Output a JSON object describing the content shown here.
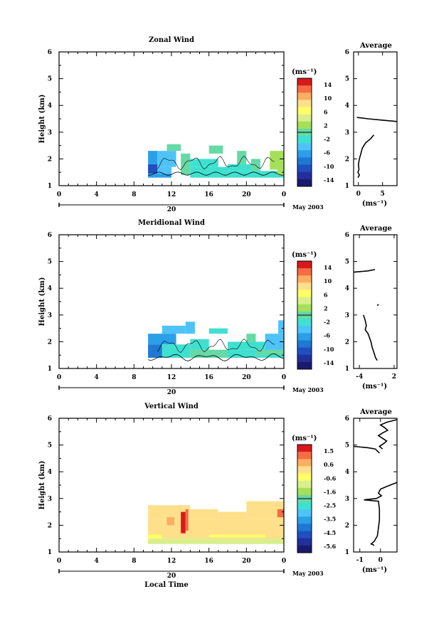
{
  "chart_data": [
    {
      "type": "heatmap",
      "title": "Zonal Wind",
      "ylabel": "Height (km)",
      "ylim": [
        1,
        6
      ],
      "y_ticks": [
        "1",
        "2",
        "3",
        "4",
        "5",
        "6"
      ],
      "xlim": [
        0,
        24
      ],
      "x_ticks": [
        "0",
        "4",
        "8",
        "12",
        "16",
        "20",
        "0"
      ],
      "date_bar": {
        "label": "20",
        "month_label": "May 2003"
      },
      "colorbar": {
        "unit_label": "(ms⁻¹)",
        "labels": [
          "14",
          "10",
          "6",
          "2",
          "-2",
          "-6",
          "-10",
          "-14"
        ],
        "range": [
          -16,
          16
        ]
      },
      "cells": [
        {
          "x": [
            9.5,
            10.5
          ],
          "y": [
            1.45,
            1.8
          ],
          "v": -10
        },
        {
          "x": [
            9.5,
            12
          ],
          "y": [
            1.3,
            1.45
          ],
          "v": -6
        },
        {
          "x": [
            10.5,
            12
          ],
          "y": [
            1.45,
            1.7
          ],
          "v": -4
        },
        {
          "x": [
            9.5,
            10.5
          ],
          "y": [
            1.8,
            2.3
          ],
          "v": -6
        },
        {
          "x": [
            10.5,
            12.5
          ],
          "y": [
            1.7,
            2.3
          ],
          "v": -4
        },
        {
          "x": [
            11.5,
            13
          ],
          "y": [
            2.3,
            2.55
          ],
          "v": 1
        },
        {
          "x": [
            13,
            14
          ],
          "y": [
            1.4,
            2.2
          ],
          "v": -1
        },
        {
          "x": [
            14,
            18
          ],
          "y": [
            1.3,
            1.7
          ],
          "v": -3
        },
        {
          "x": [
            14,
            17
          ],
          "y": [
            1.7,
            2.0
          ],
          "v": -2
        },
        {
          "x": [
            18,
            24
          ],
          "y": [
            1.3,
            1.55
          ],
          "v": -3
        },
        {
          "x": [
            18,
            20.5
          ],
          "y": [
            1.55,
            1.8
          ],
          "v": -2
        },
        {
          "x": [
            19,
            20
          ],
          "y": [
            1.8,
            2.3
          ],
          "v": 0
        },
        {
          "x": [
            16,
            17.5
          ],
          "y": [
            2.2,
            2.5
          ],
          "v": 0
        },
        {
          "x": [
            20.5,
            21.5
          ],
          "y": [
            1.55,
            2.0
          ],
          "v": -1
        },
        {
          "x": [
            22.5,
            24
          ],
          "y": [
            1.6,
            2.3
          ],
          "v": 2
        },
        {
          "x": [
            23.3,
            24
          ],
          "y": [
            1.4,
            1.7
          ],
          "v": 3
        }
      ],
      "profile": {
        "title": "Average",
        "xlabel": "(ms⁻¹)",
        "xlim": [
          -1,
          8
        ],
        "x_ticks": [
          "0",
          "5"
        ],
        "y_ticks": [
          "1",
          "2",
          "3",
          "4",
          "5",
          "6"
        ],
        "segments": [
          [
            [
              -0.3,
              3.55
            ],
            [
              2,
              3.5
            ],
            [
              5,
              3.45
            ],
            [
              8,
              3.4
            ]
          ],
          [
            [
              3.2,
              2.9
            ],
            [
              2.5,
              2.75
            ],
            [
              1.5,
              2.6
            ],
            [
              0.8,
              2.4
            ],
            [
              0.5,
              2.2
            ],
            [
              0.2,
              2.0
            ],
            [
              0.0,
              1.8
            ],
            [
              0.1,
              1.6
            ],
            [
              -0.1,
              1.5
            ],
            [
              0.2,
              1.4
            ],
            [
              -0.1,
              1.3
            ]
          ]
        ]
      }
    },
    {
      "type": "heatmap",
      "title": "Meridional Wind",
      "ylabel": "Height (km)",
      "ylim": [
        1,
        6
      ],
      "y_ticks": [
        "1",
        "2",
        "3",
        "4",
        "5",
        "6"
      ],
      "xlim": [
        0,
        24
      ],
      "x_ticks": [
        "0",
        "4",
        "8",
        "12",
        "16",
        "20",
        "0"
      ],
      "date_bar": {
        "label": "20",
        "month_label": "May 2003"
      },
      "colorbar": {
        "unit_label": "(ms⁻¹)",
        "labels": [
          "14",
          "10",
          "6",
          "2",
          "-2",
          "-6",
          "-10",
          "-14"
        ],
        "range": [
          -16,
          16
        ]
      },
      "cells": [
        {
          "x": [
            9.5,
            11
          ],
          "y": [
            1.4,
            1.9
          ],
          "v": -9
        },
        {
          "x": [
            9.5,
            12.5
          ],
          "y": [
            1.9,
            2.3
          ],
          "v": -6
        },
        {
          "x": [
            11,
            13.5
          ],
          "y": [
            2.3,
            2.6
          ],
          "v": -5
        },
        {
          "x": [
            11,
            14
          ],
          "y": [
            1.4,
            1.9
          ],
          "v": -2
        },
        {
          "x": [
            14,
            18
          ],
          "y": [
            1.4,
            1.7
          ],
          "v": -1
        },
        {
          "x": [
            14,
            16
          ],
          "y": [
            1.7,
            2.1
          ],
          "v": -3
        },
        {
          "x": [
            13.5,
            14.5
          ],
          "y": [
            2.3,
            2.75
          ],
          "v": -4
        },
        {
          "x": [
            16,
            18
          ],
          "y": [
            2.3,
            2.5
          ],
          "v": -3
        },
        {
          "x": [
            18,
            24
          ],
          "y": [
            1.4,
            1.7
          ],
          "v": -3
        },
        {
          "x": [
            18,
            22
          ],
          "y": [
            1.7,
            2.0
          ],
          "v": -2
        },
        {
          "x": [
            20,
            21
          ],
          "y": [
            2.0,
            2.3
          ],
          "v": -1
        },
        {
          "x": [
            22,
            24
          ],
          "y": [
            1.7,
            2.3
          ],
          "v": -4
        },
        {
          "x": [
            23.4,
            24
          ],
          "y": [
            2.3,
            2.8
          ],
          "v": -5
        },
        {
          "x": [
            21,
            24
          ],
          "y": [
            1.5,
            1.7
          ],
          "v": 0
        }
      ],
      "profile": {
        "title": "Average",
        "xlabel": "(ms⁻¹)",
        "xlim": [
          -5,
          2.5
        ],
        "x_ticks": [
          "-4",
          "2"
        ],
        "y_ticks": [
          "1",
          "2",
          "3",
          "4",
          "5",
          "6"
        ],
        "segments": [
          [
            [
              -5,
              4.6
            ],
            [
              -2.5,
              4.65
            ],
            [
              -1.3,
              4.7
            ]
          ],
          [
            [
              -0.9,
              3.35
            ],
            [
              -0.7,
              3.4
            ]
          ],
          [
            [
              -3.3,
              3.0
            ],
            [
              -3.0,
              2.8
            ],
            [
              -2.8,
              2.6
            ],
            [
              -3.0,
              2.45
            ],
            [
              -2.5,
              2.3
            ],
            [
              -2.0,
              2.0
            ],
            [
              -1.8,
              1.8
            ],
            [
              -1.5,
              1.6
            ],
            [
              -1.2,
              1.4
            ],
            [
              -0.9,
              1.3
            ]
          ]
        ]
      }
    },
    {
      "type": "heatmap",
      "title": "Vertical Wind",
      "ylabel": "Height (km)",
      "xlabel": "Local Time",
      "ylim": [
        1,
        6
      ],
      "y_ticks": [
        "1",
        "2",
        "3",
        "4",
        "5",
        "6"
      ],
      "xlim": [
        0,
        24
      ],
      "x_ticks": [
        "0",
        "4",
        "8",
        "12",
        "16",
        "20",
        "0"
      ],
      "date_bar": {
        "label": "20",
        "month_label": "May 2003"
      },
      "colorbar": {
        "unit_label": "(ms⁻¹)",
        "labels": [
          "1.5",
          "0.6",
          "-0.6",
          "-1.6",
          "-2.5",
          "-3.5",
          "-4.5",
          "-5.6"
        ],
        "range": [
          -6,
          2
        ]
      },
      "cells": [
        {
          "x": [
            9.5,
            24
          ],
          "y": [
            1.3,
            1.5
          ],
          "v": -0.9
        },
        {
          "x": [
            9.5,
            24
          ],
          "y": [
            1.5,
            2.2
          ],
          "v": 0.2
        },
        {
          "x": [
            9.5,
            14
          ],
          "y": [
            2.2,
            2.75
          ],
          "v": 0.4
        },
        {
          "x": [
            14,
            17
          ],
          "y": [
            2.2,
            2.6
          ],
          "v": 0.3
        },
        {
          "x": [
            17,
            20
          ],
          "y": [
            2.2,
            2.5
          ],
          "v": 0.1
        },
        {
          "x": [
            20,
            24
          ],
          "y": [
            2.2,
            2.9
          ],
          "v": 0.3
        },
        {
          "x": [
            13,
            13.5
          ],
          "y": [
            1.7,
            2.5
          ],
          "v": 1.6
        },
        {
          "x": [
            13.5,
            13.8
          ],
          "y": [
            1.8,
            2.6
          ],
          "v": 1.2
        },
        {
          "x": [
            11.5,
            12.3
          ],
          "y": [
            2.0,
            2.3
          ],
          "v": 0.8
        },
        {
          "x": [
            23.3,
            24
          ],
          "y": [
            2.3,
            2.6
          ],
          "v": 1.0
        },
        {
          "x": [
            9.5,
            11
          ],
          "y": [
            1.5,
            1.65
          ],
          "v": -0.4
        },
        {
          "x": [
            16,
            22
          ],
          "y": [
            1.55,
            1.65
          ],
          "v": -0.5
        }
      ],
      "profile": {
        "title": "Average",
        "xlabel": "(ms⁻¹)",
        "xlim": [
          -1.3,
          0.8
        ],
        "x_ticks": [
          "-1",
          "0"
        ],
        "y_ticks": [
          "1",
          "2",
          "3",
          "4",
          "5",
          "6"
        ],
        "segments": [
          [
            [
              0.8,
              5.95
            ],
            [
              0.3,
              5.85
            ],
            [
              0.0,
              5.75
            ],
            [
              0.2,
              5.65
            ],
            [
              0.35,
              5.55
            ],
            [
              0.1,
              5.45
            ],
            [
              -0.1,
              5.35
            ],
            [
              0.1,
              5.25
            ],
            [
              0.3,
              5.15
            ],
            [
              0.15,
              5.05
            ],
            [
              -0.05,
              4.95
            ],
            [
              0.1,
              4.85
            ]
          ],
          [
            [
              -1.3,
              4.95
            ],
            [
              -0.6,
              4.9
            ],
            [
              -0.25,
              4.85
            ],
            [
              -0.05,
              4.7
            ]
          ],
          [
            [
              0.8,
              3.6
            ],
            [
              0.3,
              3.45
            ],
            [
              0.0,
              3.35
            ],
            [
              -0.1,
              3.2
            ],
            [
              0.05,
              3.1
            ],
            [
              -0.2,
              3.0
            ],
            [
              -0.8,
              2.95
            ],
            [
              -0.1,
              2.9
            ],
            [
              -0.05,
              2.6
            ],
            [
              -0.05,
              2.2
            ],
            [
              -0.1,
              1.9
            ],
            [
              -0.15,
              1.6
            ],
            [
              -0.3,
              1.4
            ],
            [
              -0.45,
              1.3
            ],
            [
              -0.3,
              1.25
            ]
          ]
        ]
      }
    }
  ]
}
